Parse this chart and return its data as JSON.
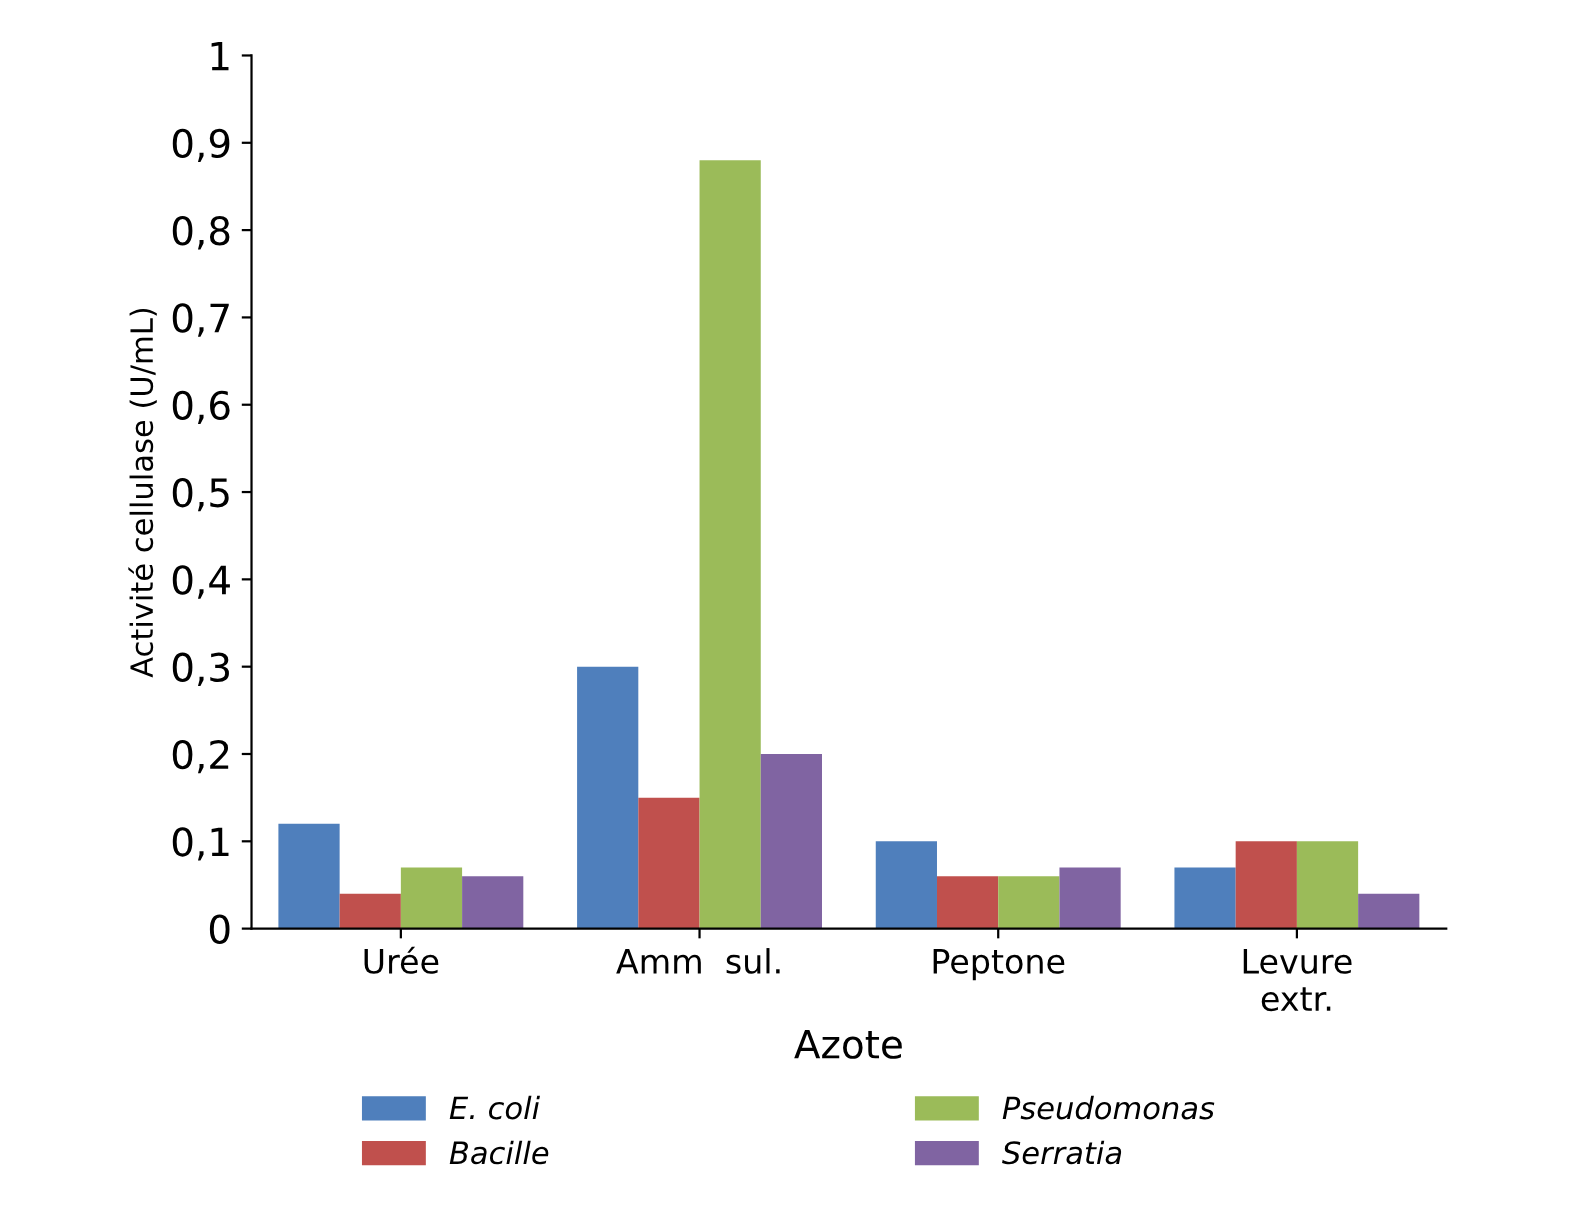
{
  "chart_data": {
    "type": "bar",
    "xlabel": "Azote",
    "ylabel": "Activité cellulase (U/mL)",
    "categories": [
      "Urée",
      "Amm  sul.",
      "Peptone",
      "Levure\nextr."
    ],
    "series": [
      {
        "name": "E. coli",
        "color": "#4f7fbc",
        "values": [
          0.12,
          0.3,
          0.1,
          0.07
        ]
      },
      {
        "name": "Bacille",
        "color": "#c0504d",
        "values": [
          0.04,
          0.15,
          0.06,
          0.1
        ]
      },
      {
        "name": "Pseudomonas",
        "color": "#9bbb59",
        "values": [
          0.07,
          0.88,
          0.06,
          0.1
        ]
      },
      {
        "name": "Serratia",
        "color": "#8064a2",
        "values": [
          0.06,
          0.2,
          0.07,
          0.04
        ]
      }
    ],
    "ylim": [
      0,
      1
    ],
    "yticks": [
      0,
      {
        "value": 0.1,
        "label": "0,1"
      },
      {
        "value": 0.2,
        "label": "0,2"
      },
      {
        "value": 0.3,
        "label": "0,3"
      },
      {
        "value": 0.4,
        "label": "0,4"
      },
      {
        "value": 0.5,
        "label": "0,5"
      },
      {
        "value": 0.6,
        "label": "0,6"
      },
      {
        "value": 0.7,
        "label": "0,7"
      },
      {
        "value": 0.8,
        "label": "0,8"
      },
      {
        "value": 0.9,
        "label": "0,9"
      },
      1
    ],
    "grid": false,
    "legend": "bottom"
  }
}
